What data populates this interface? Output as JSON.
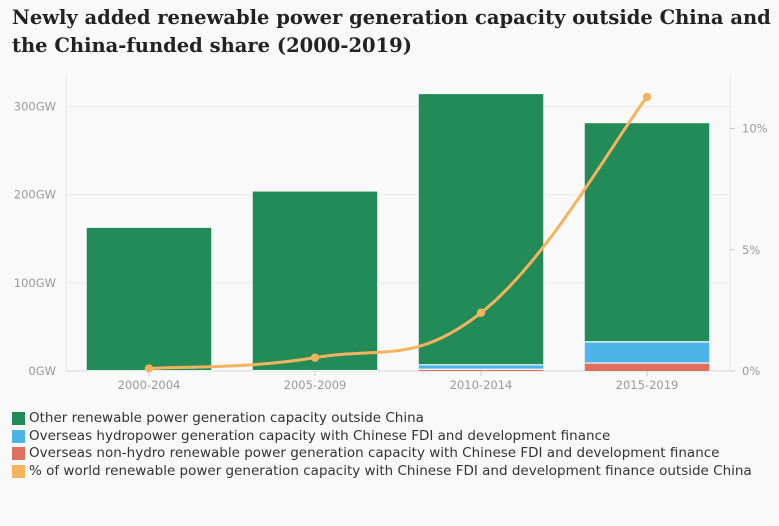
{
  "title": "Newly added renewable power generation capacity outside China and the China-funded share (2000-2019)",
  "chart_data": {
    "type": "bar",
    "stacked": true,
    "categories": [
      "2000-2004",
      "2005-2009",
      "2010-2014",
      "2015-2019"
    ],
    "series": [
      {
        "name": "Other renewable power generation capacity outside China",
        "values": [
          162,
          203,
          307,
          248
        ],
        "color": "#228b57",
        "axis": "left"
      },
      {
        "name": "Overseas hydropower generation capacity with Chinese FDI and development finance",
        "values": [
          0.3,
          0.5,
          5,
          24
        ],
        "color": "#4cb5e8",
        "axis": "left"
      },
      {
        "name": "Overseas non-hydro renewable power generation capacity with Chinese FDI and development finance",
        "values": [
          0,
          0,
          2,
          9
        ],
        "color": "#e0705e",
        "axis": "left"
      },
      {
        "name": "% of world renewable power generation capacity with Chinese FDI and development finance outside China",
        "values": [
          0.1,
          0.55,
          2.4,
          11.3
        ],
        "color": "#f5b35d",
        "type": "line",
        "axis": "right"
      }
    ],
    "y_left": {
      "range": [
        0,
        330
      ],
      "ticks": [
        0,
        100,
        200,
        300
      ],
      "tick_labels": [
        "0GW",
        "100GW",
        "200GW",
        "300GW"
      ]
    },
    "y_right": {
      "range": [
        0,
        12
      ],
      "ticks": [
        0,
        5,
        10
      ],
      "tick_labels": [
        "0%",
        "5%",
        "10%"
      ]
    },
    "grid": true,
    "legend_position": "bottom"
  }
}
